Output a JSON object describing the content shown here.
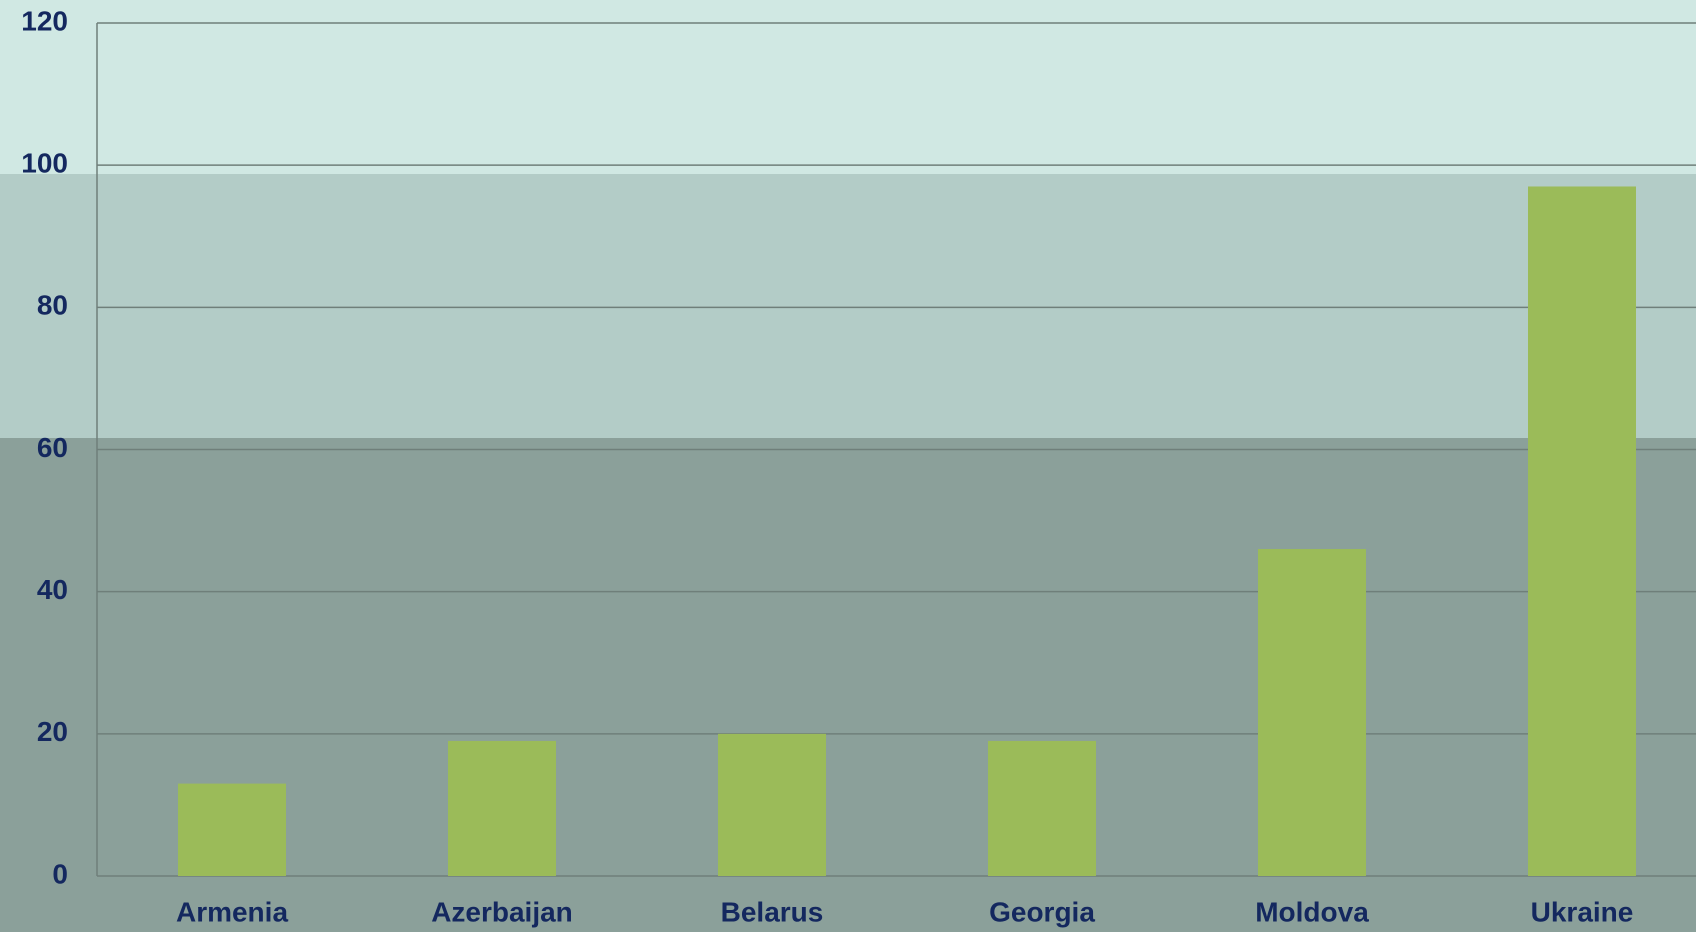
{
  "chart_data": {
    "type": "bar",
    "categories": [
      "Armenia",
      "Azerbaijan",
      "Belarus",
      "Georgia",
      "Moldova",
      "Ukraine"
    ],
    "values": [
      13,
      19,
      20,
      19,
      46,
      97
    ],
    "color": "#9bbb59",
    "ylim": [
      0,
      120
    ],
    "yticks": [
      0,
      20,
      40,
      60,
      80,
      100,
      120
    ],
    "grid": true
  }
}
